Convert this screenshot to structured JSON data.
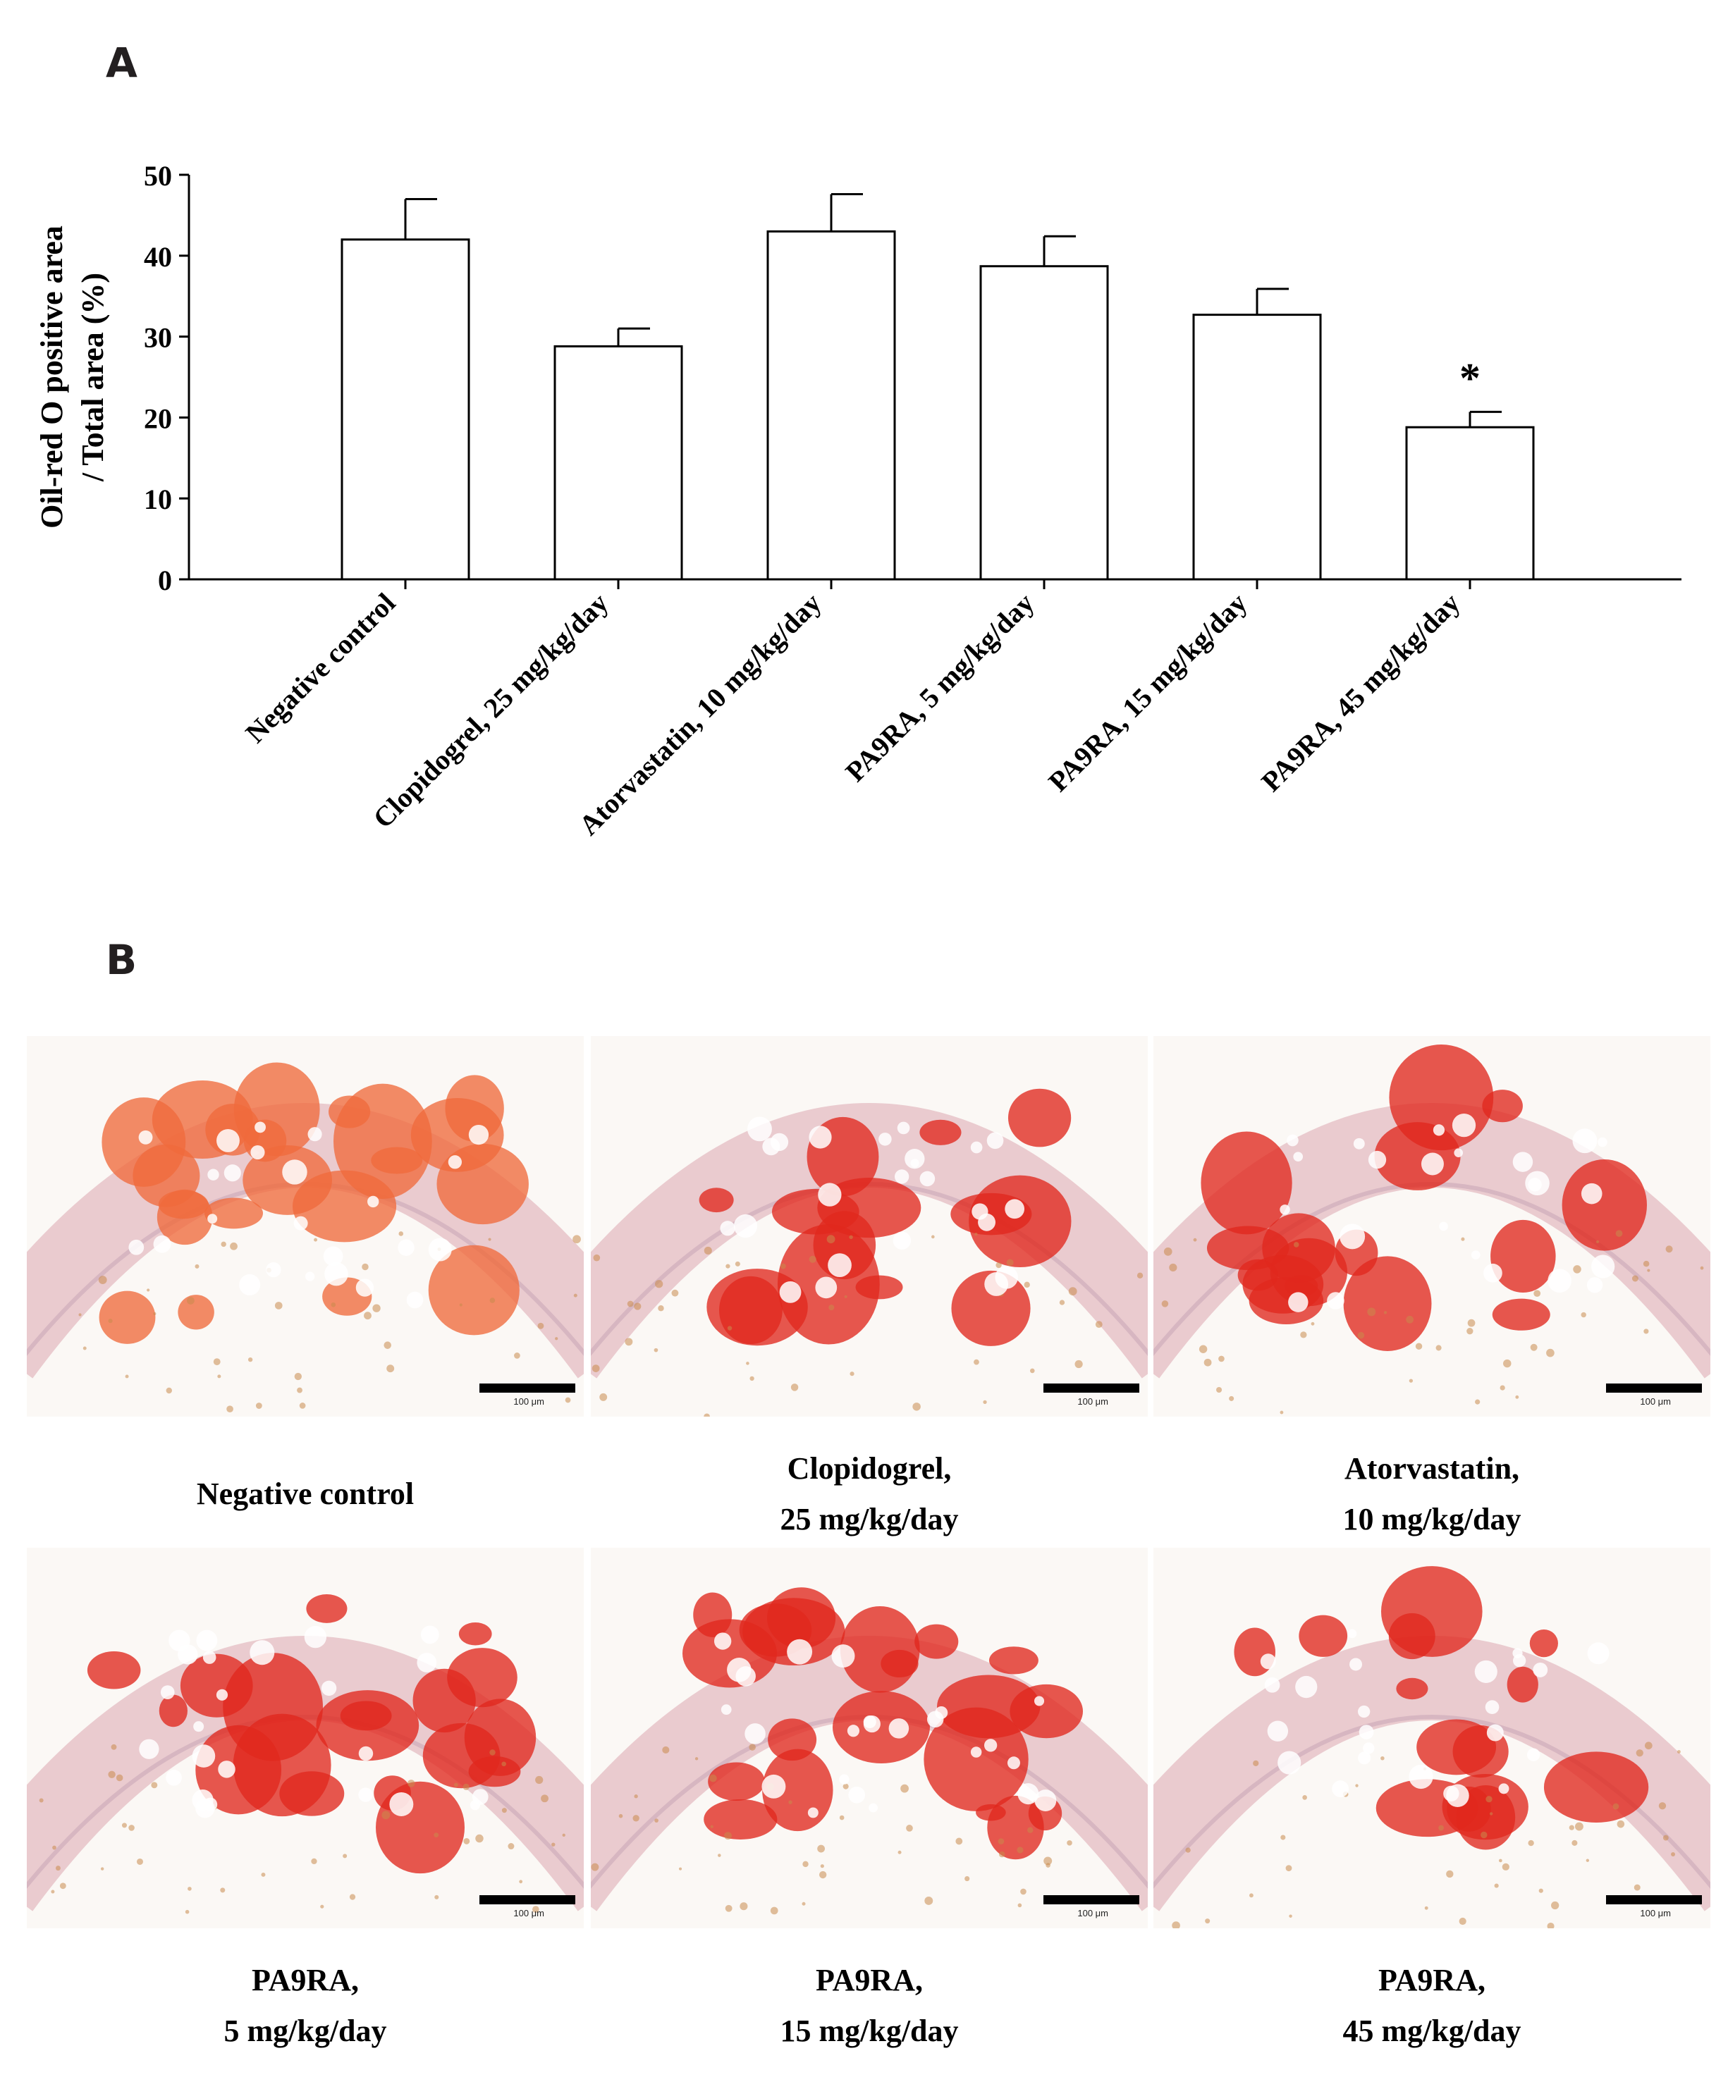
{
  "panels": {
    "a": "A",
    "b": "B"
  },
  "chart_data": {
    "type": "bar",
    "ylabel_line1": "Oil-red O positive area",
    "ylabel_line2": "/ Total area (%)",
    "ylim": [
      0,
      50
    ],
    "yticks": [
      0,
      10,
      20,
      30,
      40,
      50
    ],
    "categories": [
      "Negative control",
      "Clopidogrel, 25 mg/kg/day",
      "Atorvastatin, 10 mg/kg/day",
      "PA9RA, 5 mg/kg/day",
      "PA9RA, 15 mg/kg/day",
      "PA9RA, 45 mg/kg/day"
    ],
    "values": [
      42,
      28.8,
      43,
      38.7,
      32.7,
      18.8
    ],
    "errors": [
      5,
      2.2,
      4.6,
      3.7,
      3.2,
      1.9
    ],
    "significance": [
      "",
      "",
      "",
      "",
      "",
      "*"
    ],
    "bar_fill": "#ffffff",
    "bar_stroke": "#000000",
    "grid": false
  },
  "micrographs": {
    "scale_label": "100 μm",
    "items": [
      {
        "caption_line1": "Negative control",
        "caption_line2": ""
      },
      {
        "caption_line1": "Clopidogrel,",
        "caption_line2": "25 mg/kg/day"
      },
      {
        "caption_line1": "Atorvastatin,",
        "caption_line2": "10 mg/kg/day"
      },
      {
        "caption_line1": "PA9RA,",
        "caption_line2": "5 mg/kg/day"
      },
      {
        "caption_line1": "PA9RA,",
        "caption_line2": "15 mg/kg/day"
      },
      {
        "caption_line1": "PA9RA,",
        "caption_line2": "45 mg/kg/day"
      }
    ]
  },
  "colors": {
    "stain_red": "#e0281e",
    "stain_orange": "#f06a3c",
    "tissue_pink": "#e6c3c8",
    "blood_tan": "#c98a4c",
    "background": "#fbf8f5"
  }
}
